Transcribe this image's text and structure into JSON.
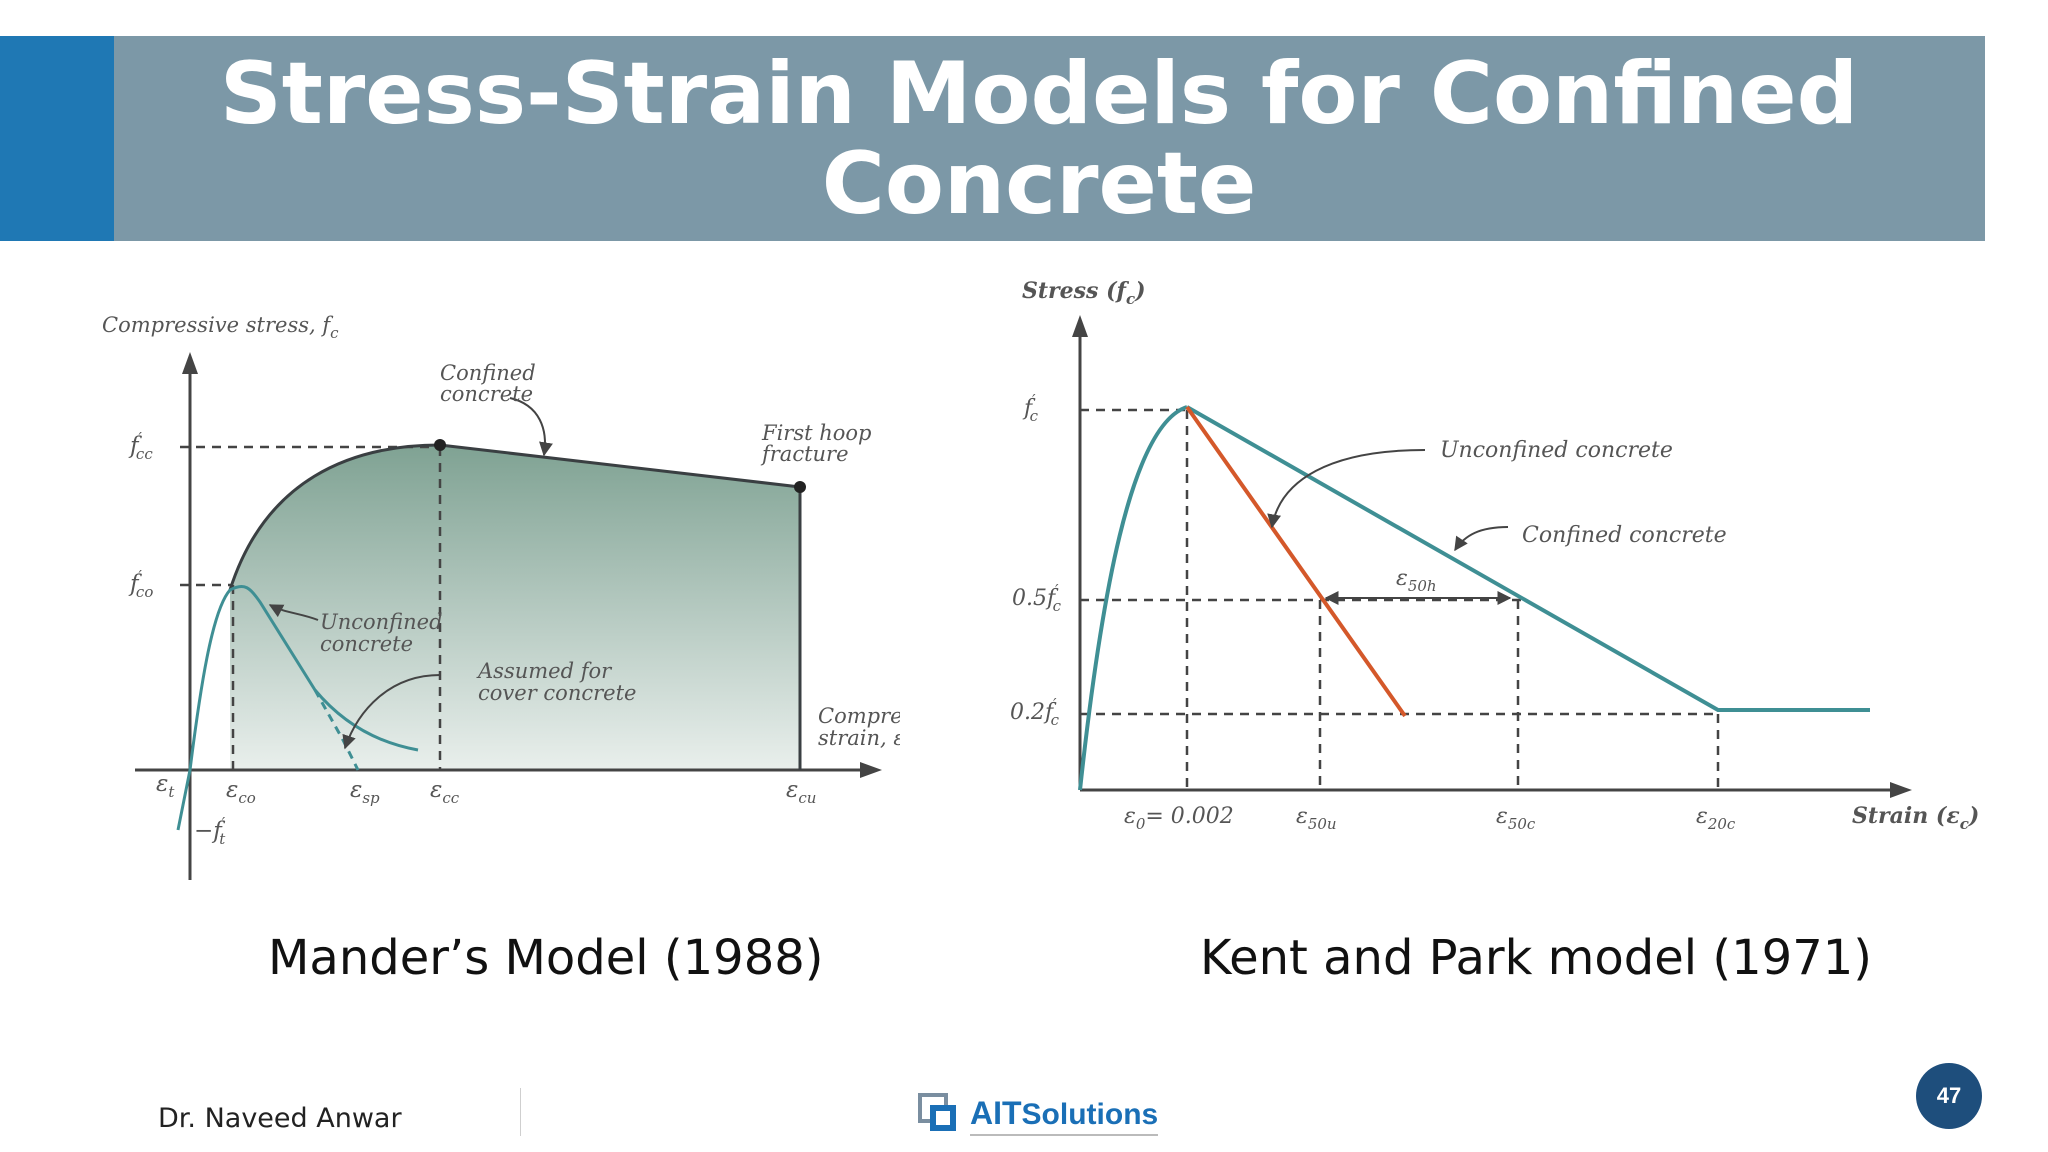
{
  "slide": {
    "title": "Stress-Strain Models for Confined Concrete",
    "page_number": "47",
    "author": "Dr. Naveed Anwar",
    "logo": {
      "ait": "AIT",
      "solutions": "Solutions"
    }
  },
  "colors": {
    "title_bar": "#7c98a7",
    "accent": "#1f78b4",
    "teal": "#3f8f94",
    "orange": "#d4582a",
    "fill": "#93b3a8",
    "badge": "#1e4e7c"
  },
  "mander": {
    "caption": "Mander’s Model (1988)",
    "y_axis_label": "Compressive stress, f",
    "y_axis_sub": "c",
    "x_axis_label_1": "Compressive",
    "x_axis_label_2": "strain, ε",
    "x_axis_sub": "c",
    "annotations": {
      "confined_1": "Confined",
      "confined_2": "concrete",
      "first_hoop_1": "First hoop",
      "first_hoop_2": "fracture",
      "unconfined_1": "Unconfined",
      "unconfined_2": "concrete",
      "assumed_1": "Assumed for",
      "assumed_2": "cover concrete"
    },
    "y_ticks": [
      {
        "main": "f",
        "sub": "cc",
        "prime": "′"
      },
      {
        "main": "f",
        "sub": "co",
        "prime": "′"
      }
    ],
    "neg_tick": {
      "main": "−f",
      "sub": "t",
      "prime": "′"
    },
    "x_ticks": [
      {
        "main": "ε",
        "sub": "t"
      },
      {
        "main": "ε",
        "sub": "co"
      },
      {
        "main": "ε",
        "sub": "sp"
      },
      {
        "main": "ε",
        "sub": "cc"
      },
      {
        "main": "ε",
        "sub": "cu"
      }
    ]
  },
  "kent_park": {
    "caption": "Kent and Park model (1971)",
    "y_axis_label": "Stress (f",
    "y_axis_sub": "c",
    "y_axis_close": ")",
    "x_axis_label": "Strain (ε",
    "x_axis_sub": "c",
    "x_axis_close": ")",
    "unconfined_label": "Unconfined concrete",
    "confined_label": "Confined concrete",
    "span_label": {
      "main": "ε",
      "sub": "50h"
    },
    "y_ticks": [
      {
        "main": "f",
        "sub": "c",
        "prime": "′",
        "coef": ""
      },
      {
        "main": "f",
        "sub": "c",
        "prime": "′",
        "coef": "0.5"
      },
      {
        "main": "f",
        "sub": "c",
        "prime": "′",
        "coef": "0.2"
      }
    ],
    "x_ticks": [
      {
        "main": "ε",
        "sub": "0",
        "suffix": "= 0.002"
      },
      {
        "main": "ε",
        "sub": "50u",
        "suffix": ""
      },
      {
        "main": "ε",
        "sub": "50c",
        "suffix": ""
      },
      {
        "main": "ε",
        "sub": "20c",
        "suffix": ""
      }
    ]
  }
}
